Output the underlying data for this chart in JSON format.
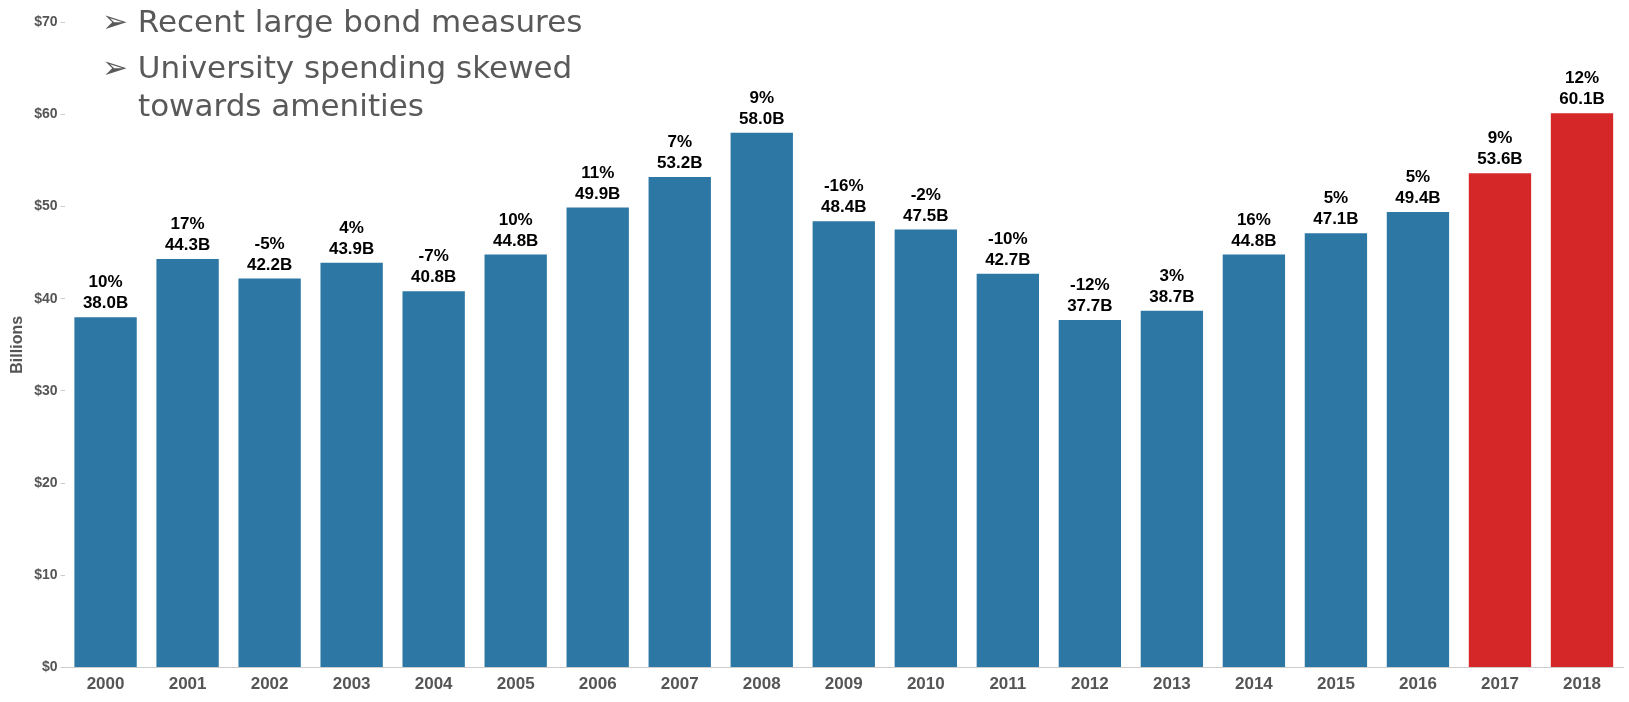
{
  "chart_data": {
    "type": "bar",
    "ylabel": "Billions",
    "categories": [
      "2000",
      "2001",
      "2002",
      "2003",
      "2004",
      "2005",
      "2006",
      "2007",
      "2008",
      "2009",
      "2010",
      "2011",
      "2012",
      "2013",
      "2014",
      "2015",
      "2016",
      "2017",
      "2018"
    ],
    "values": [
      38.0,
      44.3,
      42.2,
      43.9,
      40.8,
      44.8,
      49.9,
      53.2,
      58.0,
      48.4,
      47.5,
      42.7,
      37.7,
      38.7,
      44.8,
      47.1,
      49.4,
      53.6,
      60.1
    ],
    "colors": [
      "#2c77a4",
      "#2c77a4",
      "#2c77a4",
      "#2c77a4",
      "#2c77a4",
      "#2c77a4",
      "#2c77a4",
      "#2c77a4",
      "#2c77a4",
      "#2c77a4",
      "#2c77a4",
      "#2c77a4",
      "#2c77a4",
      "#2c77a4",
      "#2c77a4",
      "#2c77a4",
      "#2c77a4",
      "#d62728",
      "#d62728"
    ],
    "value_labels": [
      "38.0B",
      "44.3B",
      "42.2B",
      "43.9B",
      "40.8B",
      "44.8B",
      "49.9B",
      "53.2B",
      "58.0B",
      "48.4B",
      "47.5B",
      "42.7B",
      "37.7B",
      "38.7B",
      "44.8B",
      "47.1B",
      "49.4B",
      "53.6B",
      "60.1B"
    ],
    "ylim": [
      0,
      70
    ],
    "yticks": [
      {
        "value": 0,
        "label": "$0"
      },
      {
        "value": 10,
        "label": "$10"
      },
      {
        "value": 20,
        "label": "$20"
      },
      {
        "value": 30,
        "label": "$30"
      },
      {
        "value": 40,
        "label": "$40"
      },
      {
        "value": 50,
        "label": "$50"
      },
      {
        "value": 60,
        "label": "$60"
      },
      {
        "value": 70,
        "label": "$70"
      }
    ],
    "grid": false,
    "legend": false,
    "annotations": [
      "➢ Recent large bond measures",
      "➢ University spending skewed towards amenities",
      {
        "text": "10%",
        "x": "2000",
        "y": 38.0
      },
      {
        "text": "17%",
        "x": "2001",
        "y": 44.3
      },
      {
        "text": "-5%",
        "x": "2002",
        "y": 42.2
      },
      {
        "text": "4%",
        "x": "2003",
        "y": 43.9
      },
      {
        "text": "-7%",
        "x": "2004",
        "y": 40.8
      },
      {
        "text": "10%",
        "x": "2005",
        "y": 44.8
      },
      {
        "text": "11%",
        "x": "2006",
        "y": 49.9
      },
      {
        "text": "7%",
        "x": "2007",
        "y": 53.2
      },
      {
        "text": "9%",
        "x": "2008",
        "y": 58.0
      },
      {
        "text": "-16%",
        "x": "2009",
        "y": 48.4
      },
      {
        "text": "-2%",
        "x": "2010",
        "y": 47.5
      },
      {
        "text": "-10%",
        "x": "2011",
        "y": 42.7
      },
      {
        "text": "-12%",
        "x": "2012",
        "y": 37.7
      },
      {
        "text": "3%",
        "x": "2013",
        "y": 38.7
      },
      {
        "text": "16%",
        "x": "2014",
        "y": 44.8
      },
      {
        "text": "5%",
        "x": "2015",
        "y": 47.1
      },
      {
        "text": "5%",
        "x": "2016",
        "y": 49.4
      },
      {
        "text": "9%",
        "x": "2017",
        "y": 53.6
      },
      {
        "text": "12%",
        "x": "2018",
        "y": 60.1
      }
    ]
  }
}
